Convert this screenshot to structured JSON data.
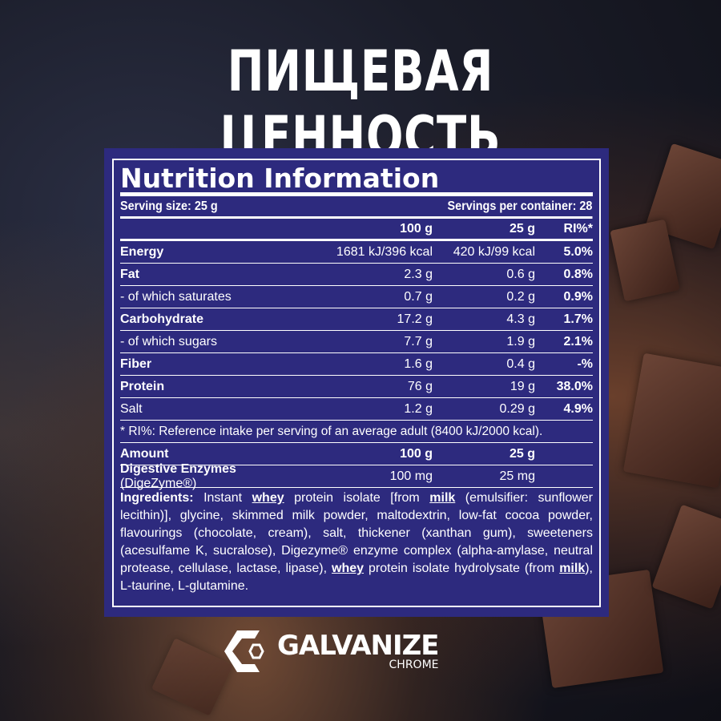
{
  "headline": "ПИЩЕВАЯ ЦЕННОСТЬ",
  "label": {
    "title": "Nutrition Information",
    "serving_size": "Serving size: 25 g",
    "servings_per_container": "Servings per container: 28",
    "columns": [
      "",
      "100 g",
      "25 g",
      "RI%*"
    ],
    "rows": [
      {
        "name": "Energy",
        "bold": true,
        "per100": "1681 kJ/396 kcal",
        "per25": "420 kJ/99 kcal",
        "ri": "5.0%"
      },
      {
        "name": "Fat",
        "bold": true,
        "per100": "2.3 g",
        "per25": "0.6 g",
        "ri": "0.8%"
      },
      {
        "name": "- of which saturates",
        "bold": false,
        "per100": "0.7 g",
        "per25": "0.2 g",
        "ri": "0.9%"
      },
      {
        "name": "Carbohydrate",
        "bold": true,
        "per100": "17.2 g",
        "per25": "4.3 g",
        "ri": "1.7%"
      },
      {
        "name": "- of which sugars",
        "bold": false,
        "per100": "7.7 g",
        "per25": "1.9 g",
        "ri": "2.1%"
      },
      {
        "name": "Fiber",
        "bold": true,
        "per100": "1.6 g",
        "per25": "0.4 g",
        "ri": "-%"
      },
      {
        "name": "Protein",
        "bold": true,
        "per100": "76 g",
        "per25": "19 g",
        "ri": "38.0%"
      },
      {
        "name": "Salt",
        "bold": false,
        "per100": "1.2 g",
        "per25": "0.29 g",
        "ri": "4.9%"
      }
    ],
    "footnote": "* RI%: Reference intake per serving of an average adult (8400 kJ/2000 kcal).",
    "amount_header": [
      "Amount",
      "100 g",
      "25 g"
    ],
    "enzymes": {
      "name": "Digestive Enzymes",
      "suffix": " (DigeZyme®)",
      "per100": "100 mg",
      "per25": "25 mg"
    },
    "ingredients": {
      "label": "Ingredients:",
      "segments": [
        {
          "t": " Instant "
        },
        {
          "t": "whey",
          "u": true
        },
        {
          "t": " protein isolate [from "
        },
        {
          "t": "milk",
          "u": true
        },
        {
          "t": " (emulsifier: sunflower lecithin)], glycine, skimmed milk powder, maltodextrin, low-fat cocoa powder, flavourings (chocolate, cream), salt, thickener (xanthan gum), sweeteners (acesulfame K, sucralose), Digezyme® enzyme complex (alpha-amylase, neutral protease, cellulase, lactase, lipase), "
        },
        {
          "t": "whey",
          "u": true
        },
        {
          "t": " protein isolate hydrolysate (from "
        },
        {
          "t": "milk",
          "u": true
        },
        {
          "t": "), L-taurine, L-glutamine."
        }
      ]
    }
  },
  "logo": {
    "name": "GALVANIZE",
    "sub": "CHROME"
  },
  "colors": {
    "panel": "#2d2a7e"
  }
}
